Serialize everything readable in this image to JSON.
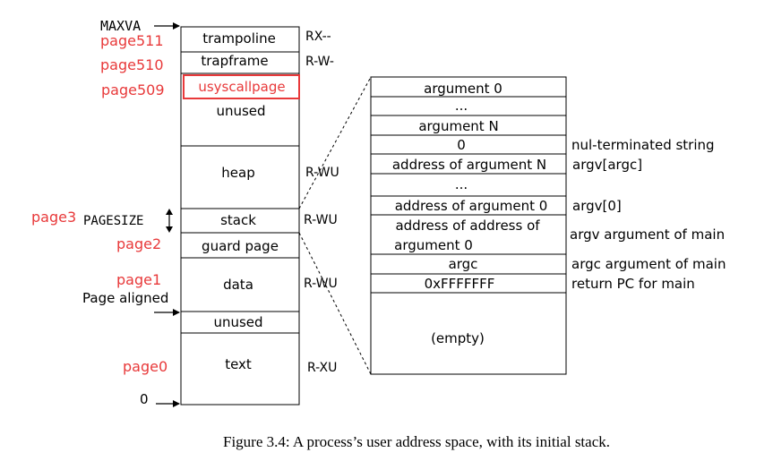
{
  "colors": {
    "page_label": "#e8393a",
    "highlight_box": "#e8393a",
    "line": "#000000"
  },
  "left_labels": {
    "maxva": "MAXVA",
    "pagesize": "PAGESIZE",
    "page_aligned": "Page aligned",
    "zero": "0"
  },
  "page_labels": {
    "page511": "page511",
    "page510": "page510",
    "page509": "page509",
    "page3": "page3",
    "page2": "page2",
    "page1": "page1",
    "page0": "page0"
  },
  "segments": {
    "trampoline": "trampoline",
    "trapframe": "trapframe",
    "usyscallpage": "usyscallpage",
    "unused_top": "unused",
    "heap": "heap",
    "stack": "stack",
    "guard_page": "guard page",
    "data": "data",
    "unused_bottom": "unused",
    "text": "text"
  },
  "permissions": {
    "trampoline": "RX--",
    "trapframe": "R-W-",
    "heap": "R-WU",
    "stack": "R-WU",
    "data": "R-WU",
    "text": "R-XU"
  },
  "stack_rows": [
    {
      "text": "argument 0",
      "note": ""
    },
    {
      "text": "...",
      "note": ""
    },
    {
      "text": "argument N",
      "note": ""
    },
    {
      "text": "0",
      "note": "nul-terminated string"
    },
    {
      "text": "address of argument N",
      "note": "argv[argc]"
    },
    {
      "text": "...",
      "note": ""
    },
    {
      "text": "address of argument 0",
      "note": "argv[0]"
    },
    {
      "text": "address of address of",
      "text2": "argument 0",
      "note": "argv argument of main"
    },
    {
      "text": "argc",
      "note": "argc argument of main"
    },
    {
      "text": "0xFFFFFFF",
      "note": "return PC for main"
    },
    {
      "text": "(empty)",
      "note": ""
    }
  ],
  "caption": "Figure 3.4: A process’s user address space, with its initial stack."
}
